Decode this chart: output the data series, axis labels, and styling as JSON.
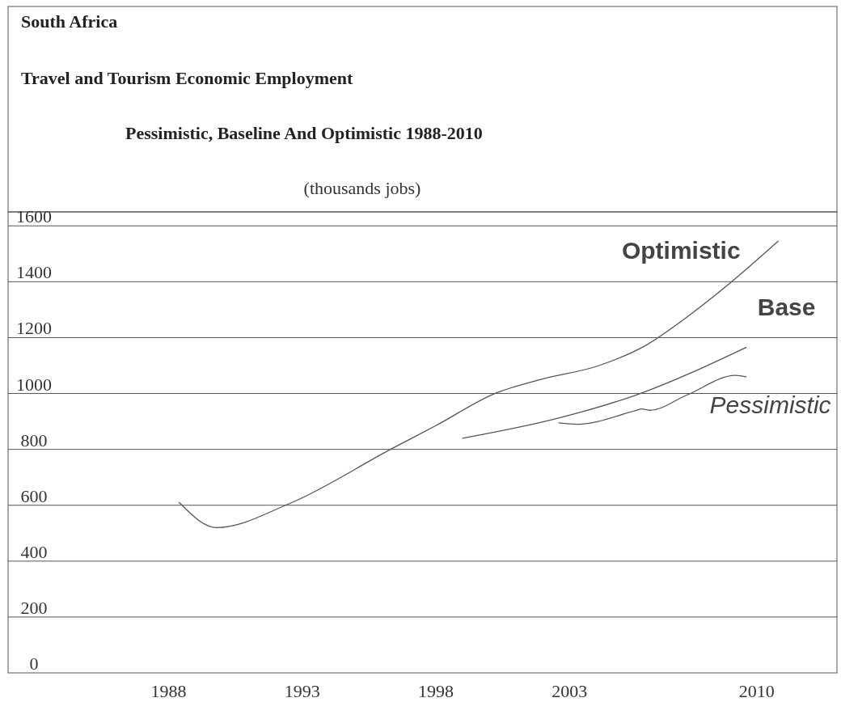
{
  "chart_data": {
    "type": "line",
    "title": "Travel and Tourism Economic Employment",
    "subtitle": "Pessimistic, Baseline And Optimistic 1988-2010",
    "ylabel": "(thousands jobs)",
    "annotations": [
      "South Africa"
    ],
    "xlim": [
      1982,
      2013
    ],
    "xticks": [
      1988,
      1993,
      1998,
      2003,
      2010
    ],
    "ylim": [
      0,
      1650
    ],
    "yticks": [
      0,
      200,
      400,
      600,
      800,
      1000,
      1200,
      1400,
      1600
    ],
    "grid": "y",
    "marker": "none",
    "line_style": "solid",
    "series": [
      {
        "name": "Optimistic",
        "color": "#555555",
        "x": [
          1988.4,
          1989.8,
          1992.5,
          1996.4,
          1998,
          2000.2,
          2001.9,
          2004.1,
          2005.9,
          2007.2,
          2009,
          2010.8
        ],
        "values": [
          610,
          520,
          605,
          805,
          885,
          1000,
          1050,
          1100,
          1175,
          1260,
          1395,
          1545
        ]
      },
      {
        "name": "Base",
        "color": "#555555",
        "x": [
          1999,
          2002.5,
          2005.5,
          2009.6
        ],
        "values": [
          840,
          910,
          995,
          1165
        ]
      },
      {
        "name": "Pessimistic",
        "color": "#555555",
        "x": [
          2002.6,
          2003.3,
          2005.5,
          2005.7,
          2006,
          2007.4,
          2009.2,
          2009.6
        ],
        "values": [
          895,
          890,
          940,
          945,
          940,
          995,
          1065,
          1060
        ]
      }
    ]
  }
}
